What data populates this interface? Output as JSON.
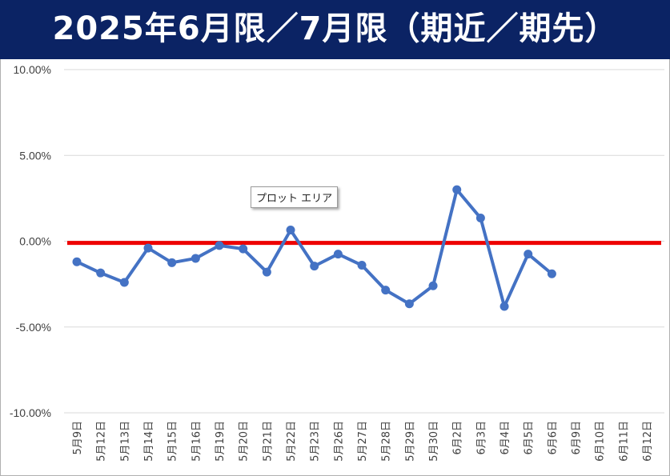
{
  "title": "2025年6月限／7月限（期近／期先）",
  "tooltip": "プロット エリア",
  "chart_data": {
    "type": "line",
    "title": "2025年6月限／7月限（期近／期先）",
    "categories": [
      "5月9日",
      "5月12日",
      "5月13日",
      "5月14日",
      "5月15日",
      "5月16日",
      "5月19日",
      "5月20日",
      "5月21日",
      "5月22日",
      "5月23日",
      "5月26日",
      "5月27日",
      "5月28日",
      "5月29日",
      "5月30日",
      "6月2日",
      "6月3日",
      "6月4日",
      "6月5日",
      "6月6日",
      "6月9日",
      "6月10日",
      "6月11日",
      "6月12日"
    ],
    "series": [
      {
        "values": [
          -1.2,
          -1.85,
          -2.4,
          -0.4,
          -1.25,
          -1.0,
          -0.25,
          -0.45,
          -1.8,
          0.65,
          -1.45,
          -0.75,
          -1.4,
          -2.85,
          -3.65,
          -2.6,
          3.0,
          1.35,
          -3.8,
          -0.75,
          -1.9,
          null,
          null,
          null,
          null
        ],
        "color": "#4472c4"
      }
    ],
    "reference_line": {
      "value": -0.1,
      "color": "#ee0000"
    },
    "ylim": [
      -10,
      10
    ],
    "yticks": [
      "10.00%",
      "5.00%",
      "0.00%",
      "-5.00%",
      "-10.00%"
    ],
    "ytick_values": [
      10,
      5,
      0,
      -5,
      -10
    ],
    "grid": true
  }
}
